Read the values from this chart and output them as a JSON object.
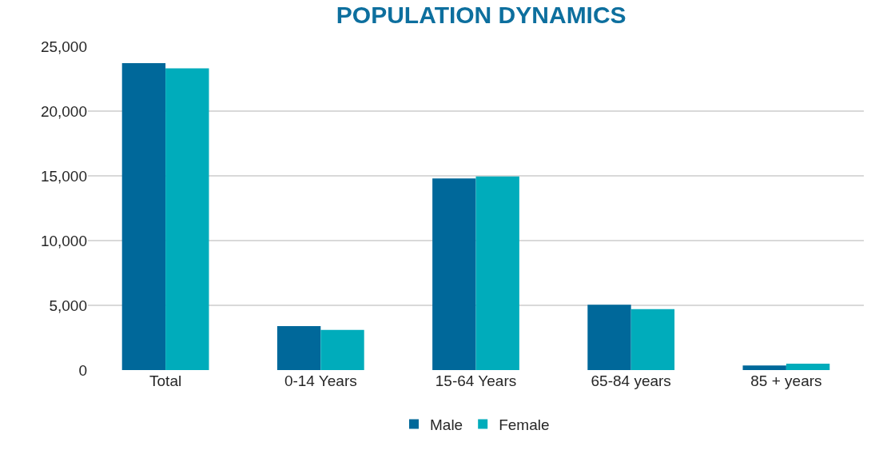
{
  "chart_data": {
    "type": "bar",
    "title": "POPULATION DYNAMICS",
    "categories": [
      "Total",
      "0-14 Years",
      "15-64 Years",
      "65-84 years",
      "85 + years"
    ],
    "series": [
      {
        "name": "Male",
        "color": "#00689a",
        "values": [
          23700,
          3400,
          14800,
          5050,
          350
        ]
      },
      {
        "name": "Female",
        "color": "#00acbb",
        "values": [
          23300,
          3100,
          14950,
          4700,
          500
        ]
      }
    ],
    "ylim": [
      0,
      25000
    ],
    "yticks": [
      {
        "value": 0,
        "label": "0"
      },
      {
        "value": 5000,
        "label": "5,000"
      },
      {
        "value": 10000,
        "label": "10,000"
      },
      {
        "value": 15000,
        "label": "15,000"
      },
      {
        "value": 20000,
        "label": "20,000"
      },
      {
        "value": 25000,
        "label": "25,000"
      }
    ],
    "grid": "y",
    "legend": "bottom"
  }
}
